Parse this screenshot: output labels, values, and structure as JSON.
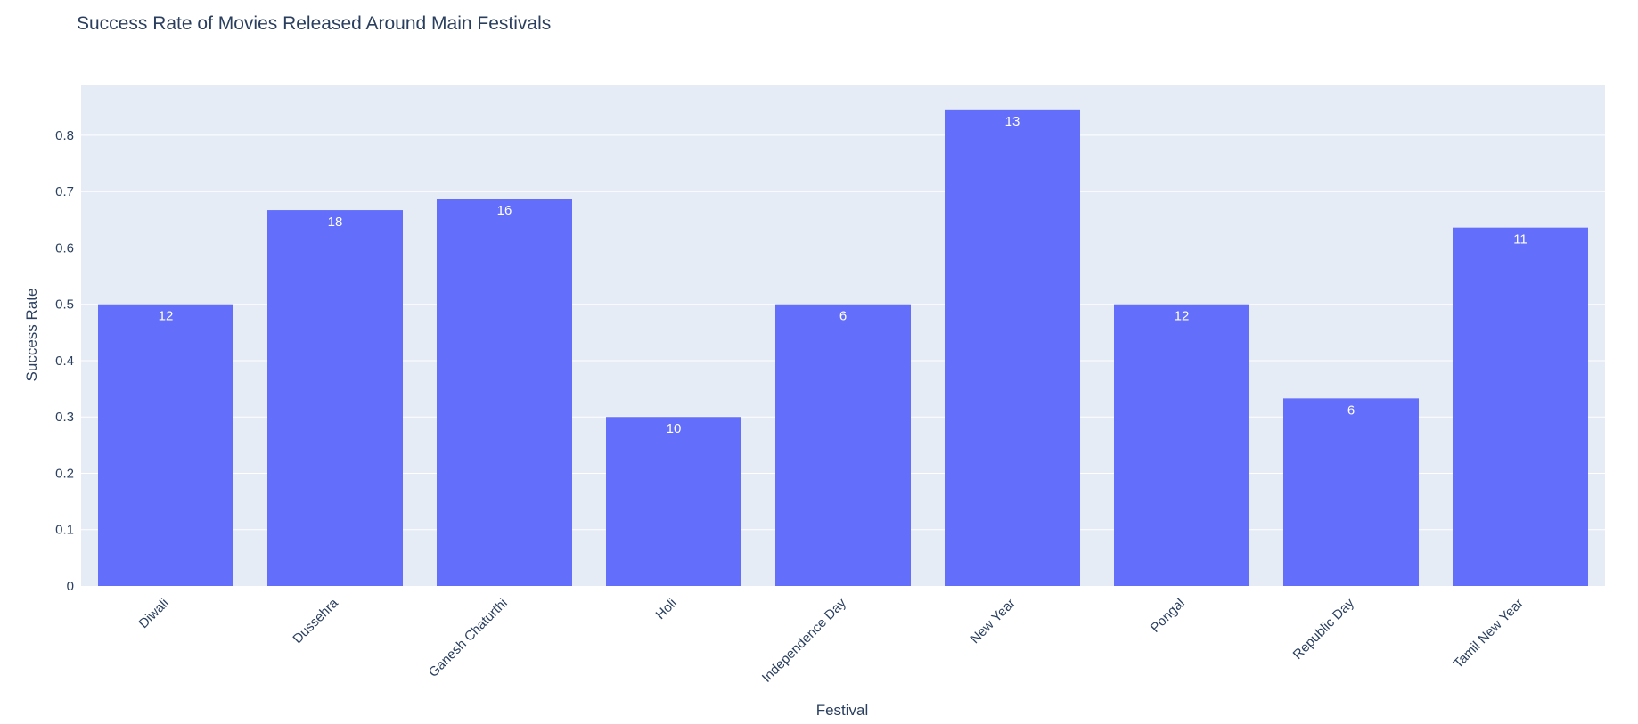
{
  "chart_data": {
    "type": "bar",
    "title": "Success Rate of Movies Released Around Main Festivals",
    "xlabel": "Festival",
    "ylabel": "Success Rate",
    "categories": [
      "Diwali",
      "Dussehra",
      "Ganesh Chaturthi",
      "Holi",
      "Independence Day",
      "New Year",
      "Pongal",
      "Republic Day",
      "Tamil New Year"
    ],
    "values": [
      0.5,
      0.667,
      0.6875,
      0.3,
      0.5,
      0.846,
      0.5,
      0.333,
      0.636
    ],
    "data_labels": [
      "12",
      "18",
      "16",
      "10",
      "6",
      "13",
      "12",
      "6",
      "11"
    ],
    "ylim": [
      0,
      0.89
    ],
    "yticks": [
      0,
      0.1,
      0.2,
      0.3,
      0.4,
      0.5,
      0.6,
      0.7,
      0.8
    ],
    "ytick_labels": [
      "0",
      "0.1",
      "0.2",
      "0.3",
      "0.4",
      "0.5",
      "0.6",
      "0.7",
      "0.8"
    ],
    "grid": true,
    "colors": {
      "bar": "#636efa",
      "plot_bg": "#e5ecf6",
      "grid": "#ffffff",
      "text": "#2a3f5f",
      "bar_label": "#ffffff"
    }
  }
}
